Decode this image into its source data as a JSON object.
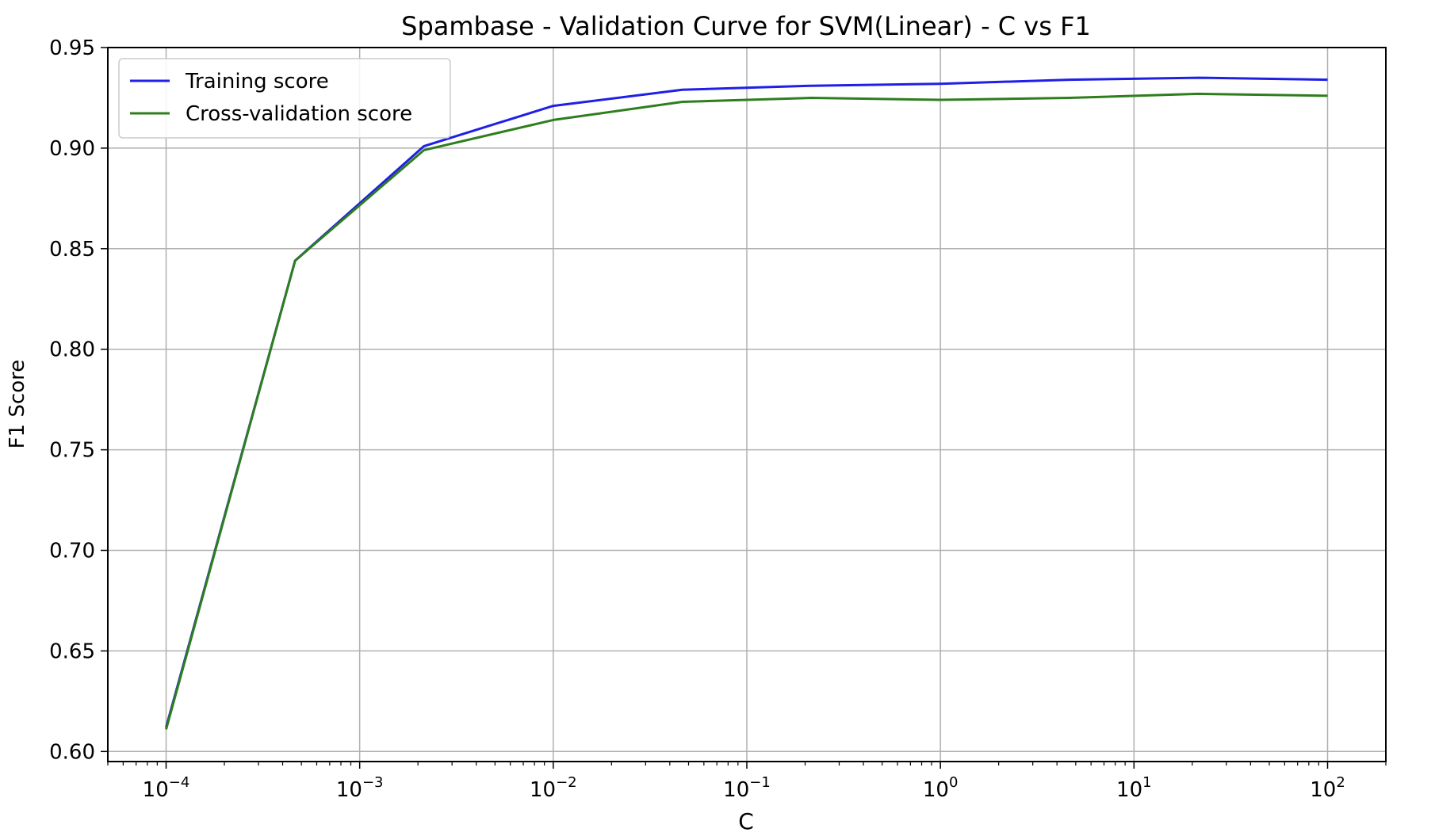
{
  "chart_data": {
    "type": "line",
    "title": "Spambase - Validation Curve for SVM(Linear) - C vs F1",
    "xlabel": "C",
    "ylabel": "F1 Score",
    "xscale": "log",
    "xlim": [
      5e-05,
      200
    ],
    "ylim": [
      0.595,
      0.95
    ],
    "grid": true,
    "legend_position": "top-left",
    "x": [
      0.0001,
      0.000464,
      0.00215,
      0.01,
      0.0464,
      0.215,
      1,
      4.64,
      21.5,
      100
    ],
    "series": [
      {
        "name": "Training score",
        "color": "#1f1fe6",
        "values": [
          0.612,
          0.844,
          0.901,
          0.921,
          0.929,
          0.931,
          0.932,
          0.934,
          0.935,
          0.934
        ]
      },
      {
        "name": "Cross-validation score",
        "color": "#2e7d1e",
        "values": [
          0.611,
          0.844,
          0.899,
          0.914,
          0.923,
          0.925,
          0.924,
          0.925,
          0.927,
          0.926
        ]
      }
    ],
    "y_ticks": [
      {
        "value": 0.6,
        "label": "0.60"
      },
      {
        "value": 0.65,
        "label": "0.65"
      },
      {
        "value": 0.7,
        "label": "0.70"
      },
      {
        "value": 0.75,
        "label": "0.75"
      },
      {
        "value": 0.8,
        "label": "0.80"
      },
      {
        "value": 0.85,
        "label": "0.85"
      },
      {
        "value": 0.9,
        "label": "0.90"
      },
      {
        "value": 0.95,
        "label": "0.95"
      }
    ],
    "x_ticks": [
      {
        "value": 0.0001,
        "base": "10",
        "exp": "−4"
      },
      {
        "value": 0.001,
        "base": "10",
        "exp": "−3"
      },
      {
        "value": 0.01,
        "base": "10",
        "exp": "−2"
      },
      {
        "value": 0.1,
        "base": "10",
        "exp": "−1"
      },
      {
        "value": 1,
        "base": "10",
        "exp": "0"
      },
      {
        "value": 10,
        "base": "10",
        "exp": "1"
      },
      {
        "value": 100,
        "base": "10",
        "exp": "2"
      }
    ]
  }
}
